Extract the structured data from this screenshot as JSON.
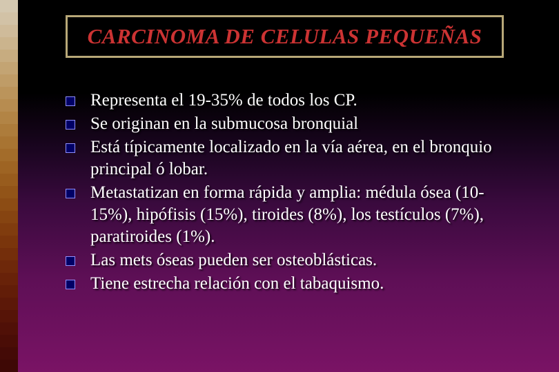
{
  "slide": {
    "background_gradient_top": "#000000",
    "background_gradient_bottom": "#7a1365",
    "text_color": "#ffffff"
  },
  "left_strip": {
    "square_count": 30,
    "colors": [
      "#d4c8b0",
      "#d2c2a6",
      "#cfbb9a",
      "#cbb48d",
      "#c7ac80",
      "#c3a473",
      "#bf9c67",
      "#bb945b",
      "#b78c50",
      "#b28445",
      "#ad7c3b",
      "#a87432",
      "#a36c2a",
      "#9e6423",
      "#985c1d",
      "#925418",
      "#8c4c14",
      "#864411",
      "#803c0e",
      "#7a350c",
      "#742e0b",
      "#6e280a",
      "#682209",
      "#621d08",
      "#5c1808",
      "#561407",
      "#501007",
      "#4a0d06",
      "#440a06",
      "#3e0805"
    ]
  },
  "title": {
    "text": "CARCINOMA DE CELULAS PEQUEÑAS",
    "text_color": "#cc3333",
    "border_color": "#b8a878",
    "background": "#000000",
    "font_size": 31,
    "italic": true,
    "bold": true
  },
  "bullets": {
    "marker_fill": "#000066",
    "marker_border": "#9090ff",
    "marker_size": 14,
    "font_size": 25,
    "items": [
      {
        "text": "Representa el 19-35% de todos los CP."
      },
      {
        "text": "Se originan en la submucosa bronquial"
      },
      {
        "text": "Está típicamente localizado en la vía aérea, en el bronquio principal ó lobar."
      },
      {
        "text": "Metastatizan en forma rápida y amplia: médula ósea (10-15%), hipófisis (15%), tiroides (8%), los testículos (7%), paratiroides (1%)."
      },
      {
        "text": "Las mets óseas pueden ser osteoblásticas."
      },
      {
        "text": "Tiene estrecha relación con el tabaquismo."
      }
    ]
  }
}
